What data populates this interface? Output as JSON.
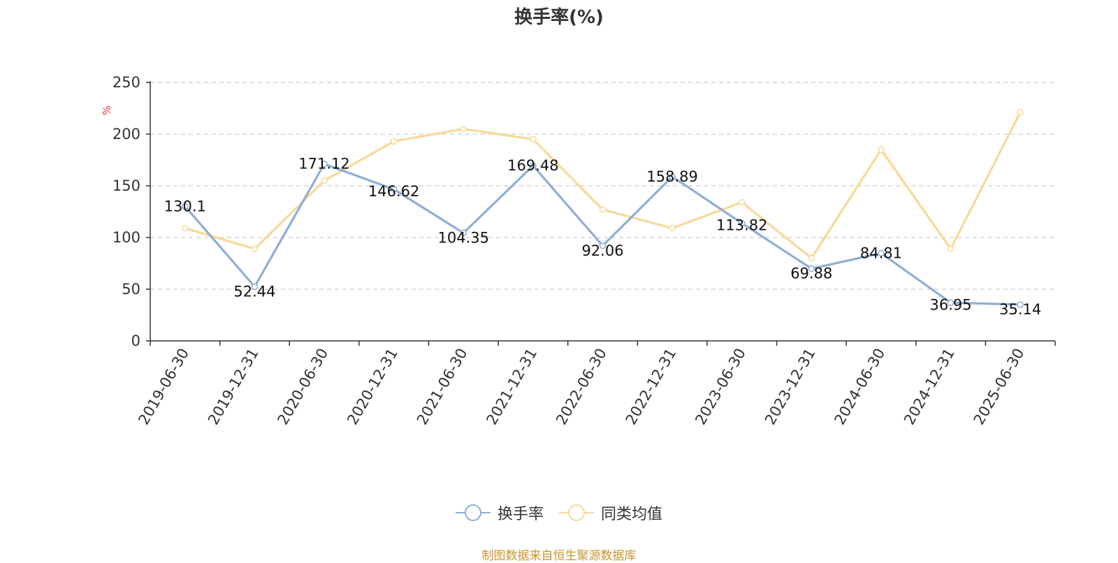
{
  "title": "换手率(%)",
  "source": "制图数据来自恒生聚源数据库",
  "chart_data": {
    "type": "line",
    "title": "换手率(%)",
    "ylabel": "%",
    "xlabel": "",
    "ylim": [
      0,
      250
    ],
    "yticks": [
      0,
      50,
      100,
      150,
      200,
      250
    ],
    "grid": true,
    "legend_position": "bottom-center",
    "categories": [
      "2019-06-30",
      "2019-12-31",
      "2020-06-30",
      "2020-12-31",
      "2021-06-30",
      "2021-12-31",
      "2022-06-30",
      "2022-12-31",
      "2023-06-30",
      "2023-12-31",
      "2024-06-30",
      "2024-12-31",
      "2025-06-30"
    ],
    "series": [
      {
        "name": "换手率",
        "color": "#8eaed6",
        "values": [
          130.1,
          52.44,
          171.12,
          146.62,
          104.35,
          169.48,
          92.06,
          158.89,
          113.82,
          69.88,
          84.81,
          36.95,
          35.14
        ],
        "labels": [
          "130.1",
          "52.44",
          "171.12",
          "146.62",
          "104.35",
          "169.48",
          "92.06",
          "158.89",
          "113.82",
          "69.88",
          "84.81",
          "36.95",
          "35.14"
        ]
      },
      {
        "name": "同类均值",
        "color": "#f9d898",
        "values": [
          109,
          89,
          155,
          193,
          205,
          195,
          127,
          109,
          134,
          80,
          185,
          89,
          221
        ]
      }
    ]
  }
}
